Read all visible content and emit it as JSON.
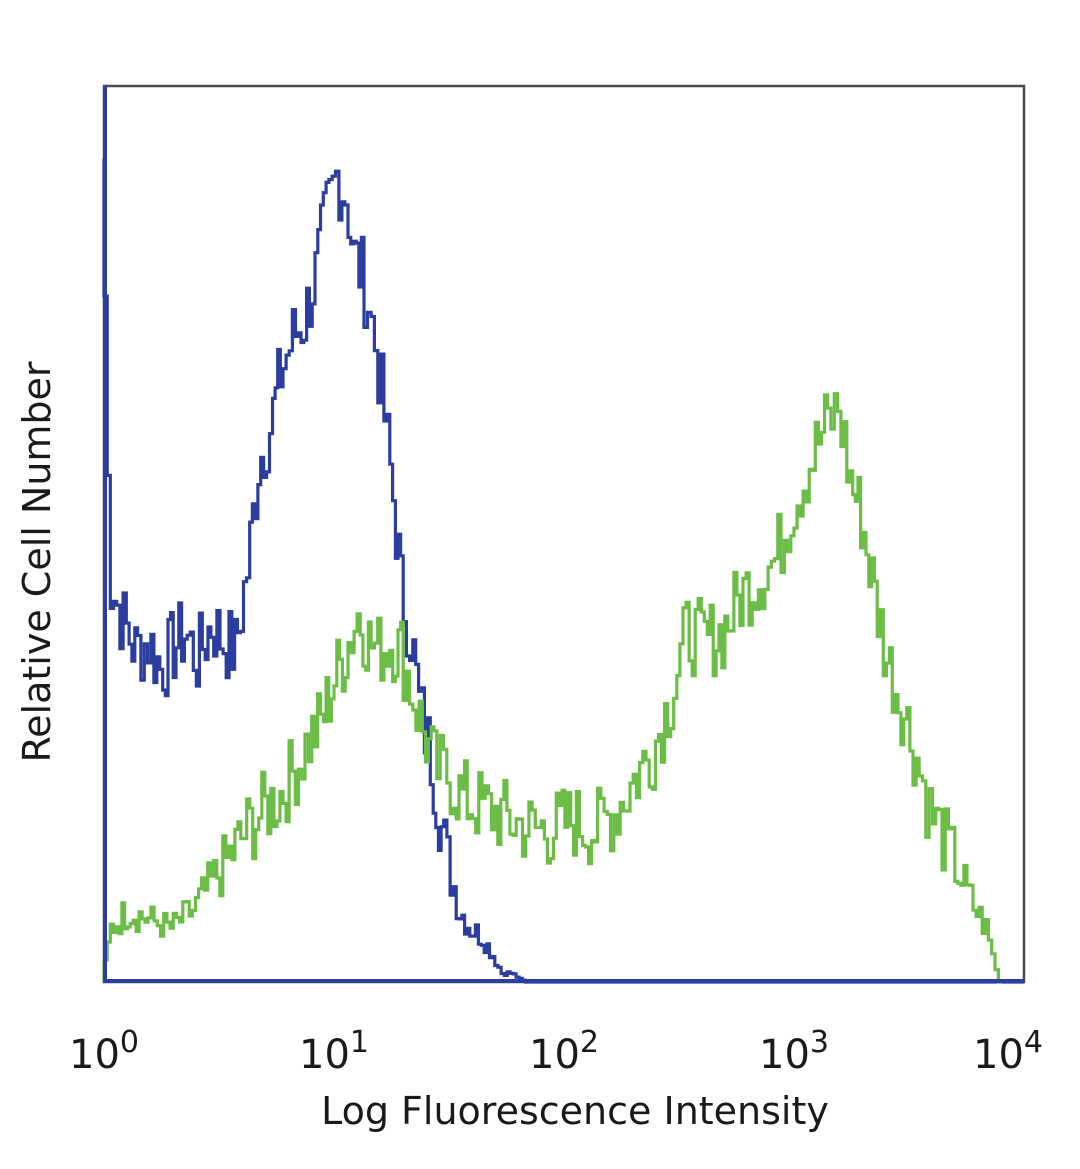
{
  "chart_data": {
    "type": "line",
    "xlabel": "Log Fluorescence Intensity",
    "ylabel": "Relative Cell Number",
    "x_scale": "log",
    "xlim": [
      1,
      10000
    ],
    "x_ticks": [
      {
        "base": "10",
        "exp": "0",
        "value": 1
      },
      {
        "base": "10",
        "exp": "1",
        "value": 10
      },
      {
        "base": "10",
        "exp": "2",
        "value": 100
      },
      {
        "base": "10",
        "exp": "3",
        "value": 1000
      },
      {
        "base": "10",
        "exp": "4",
        "value": 10000
      }
    ],
    "ylim": [
      0,
      1
    ],
    "y_ticks_shown": false,
    "grid": false,
    "legend": "none",
    "series": [
      {
        "color": "#2b3d9e",
        "x": [
          1.0,
          1.1,
          1.25,
          1.4,
          1.6,
          1.8,
          2.0,
          2.3,
          2.6,
          3.0,
          3.4,
          3.8,
          4.3,
          4.8,
          5.4,
          6.0,
          6.8,
          7.6,
          8.5,
          9.5,
          10.5,
          11.5,
          12.5,
          13.5,
          14.5,
          15.5,
          17.0,
          18.5,
          20.0,
          22.0,
          24.0,
          27.0,
          30.0,
          33.0,
          36.0,
          40.0,
          45.0,
          50.0,
          55.0,
          60.0,
          70.0,
          80.0,
          100.0,
          150.0,
          200.0,
          300.0,
          500.0,
          1000.0,
          10000.0
        ],
        "y": [
          0.92,
          0.44,
          0.4,
          0.37,
          0.38,
          0.35,
          0.37,
          0.39,
          0.36,
          0.4,
          0.38,
          0.37,
          0.46,
          0.58,
          0.62,
          0.68,
          0.72,
          0.74,
          0.79,
          0.86,
          0.9,
          0.88,
          0.81,
          0.79,
          0.76,
          0.71,
          0.63,
          0.54,
          0.44,
          0.39,
          0.31,
          0.25,
          0.17,
          0.12,
          0.08,
          0.06,
          0.05,
          0.03,
          0.01,
          0.01,
          0.0,
          0.0,
          0.0,
          0.0,
          0.0,
          0.0,
          0.0,
          0.0,
          0.0
        ]
      },
      {
        "color": "#6cbd45",
        "x": [
          1.0,
          1.1,
          1.3,
          1.6,
          2.0,
          2.5,
          3.0,
          3.6,
          4.3,
          5.0,
          6.0,
          7.0,
          8.0,
          9.0,
          10.0,
          11.5,
          13.0,
          14.5,
          16.0,
          18.0,
          20.0,
          22.0,
          25.0,
          28.0,
          32.0,
          36.0,
          40.0,
          50.0,
          60.0,
          75.0,
          90.0,
          110.0,
          140.0,
          170.0,
          200.0,
          250.0,
          300.0,
          350.0,
          420.0,
          500.0,
          600.0,
          700.0,
          850.0,
          1000.0,
          1200.0,
          1400.0,
          1600.0,
          1800.0,
          2000.0,
          2300.0,
          2600.0,
          3000.0,
          3500.0,
          4000.0,
          5000.0,
          6000.0,
          7000.0,
          8000.0
        ],
        "y": [
          0.0,
          0.06,
          0.08,
          0.07,
          0.06,
          0.08,
          0.11,
          0.14,
          0.17,
          0.19,
          0.21,
          0.24,
          0.27,
          0.29,
          0.33,
          0.37,
          0.41,
          0.38,
          0.37,
          0.38,
          0.37,
          0.33,
          0.28,
          0.24,
          0.23,
          0.21,
          0.2,
          0.19,
          0.18,
          0.17,
          0.17,
          0.18,
          0.17,
          0.19,
          0.22,
          0.26,
          0.32,
          0.39,
          0.38,
          0.39,
          0.43,
          0.45,
          0.47,
          0.53,
          0.58,
          0.62,
          0.64,
          0.56,
          0.52,
          0.43,
          0.36,
          0.31,
          0.25,
          0.19,
          0.14,
          0.09,
          0.06,
          0.0
        ]
      }
    ]
  }
}
